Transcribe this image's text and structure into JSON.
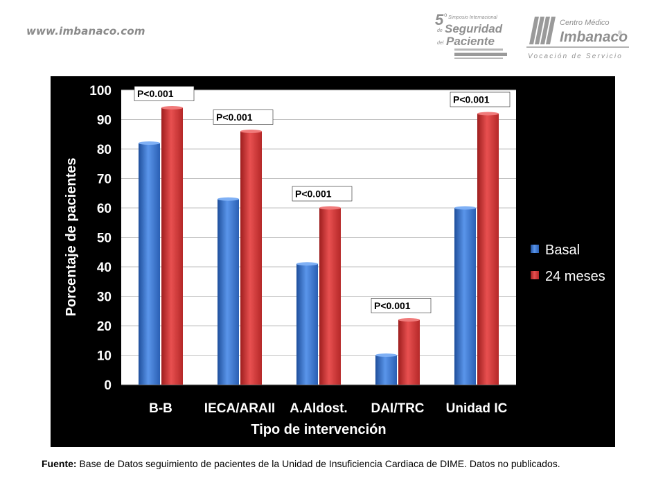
{
  "header": {
    "site_url": "www.imbanaco.com",
    "symposium_logo": {
      "number": "5",
      "superscript": "o",
      "line1": "Simposio Internacional",
      "line2": "de",
      "line3": "Seguridad",
      "line4": "del",
      "line5": "Paciente"
    },
    "imbanaco_logo": {
      "line1": "Centro Médico",
      "line2": "Imbanaco",
      "registered": "®",
      "tagline": "Vocación de Servicio"
    }
  },
  "colors": {
    "basal": "#3b78d8",
    "meses24": "#d63a3a",
    "panel_bg": "#000000",
    "plot_bg": "#ffffff",
    "grid": "#bfbfbf",
    "text": "#ffffff"
  },
  "chart_data": {
    "type": "bar",
    "xlabel": "Tipo de intervención",
    "ylabel": "Porcentaje de pacientes",
    "ylim": [
      0,
      100
    ],
    "yticks": [
      0,
      10,
      20,
      30,
      40,
      50,
      60,
      70,
      80,
      90,
      100
    ],
    "categories": [
      "B-B",
      "IECA/ARAII",
      "A.Aldost.",
      "DAI/TRC",
      "Unidad IC"
    ],
    "series": [
      {
        "name": "Basal",
        "values": [
          82,
          63,
          41,
          10,
          60
        ]
      },
      {
        "name": "24 meses",
        "values": [
          94,
          86,
          60,
          22,
          92
        ]
      }
    ],
    "annotations": [
      "P<0.001",
      "P<0.001",
      "P<0.001",
      "P<0.001",
      "P<0.001"
    ],
    "grid": true,
    "legend": "right"
  },
  "footnote": {
    "label": "Fuente:",
    "text": " Base de Datos  seguimiento de pacientes de la Unidad de  Insuficiencia Cardiaca de DIME. Datos no publicados."
  }
}
